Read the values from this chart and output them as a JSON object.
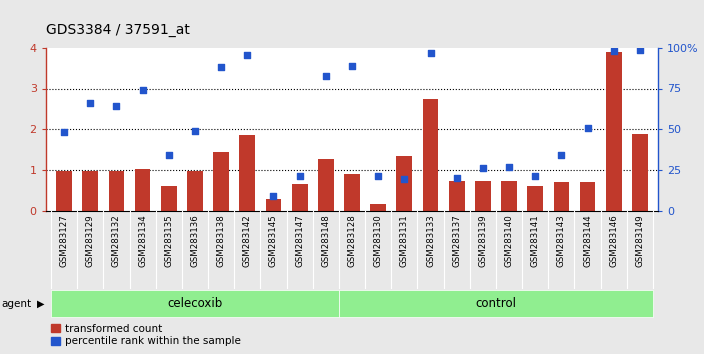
{
  "title": "GDS3384 / 37591_at",
  "categories": [
    "GSM283127",
    "GSM283129",
    "GSM283132",
    "GSM283134",
    "GSM283135",
    "GSM283136",
    "GSM283138",
    "GSM283142",
    "GSM283145",
    "GSM283147",
    "GSM283148",
    "GSM283128",
    "GSM283130",
    "GSM283131",
    "GSM283133",
    "GSM283137",
    "GSM283139",
    "GSM283140",
    "GSM283141",
    "GSM283143",
    "GSM283144",
    "GSM283146",
    "GSM283149"
  ],
  "red_values": [
    0.97,
    0.97,
    0.97,
    1.02,
    0.6,
    0.97,
    1.43,
    1.87,
    0.28,
    0.65,
    1.28,
    0.9,
    0.17,
    1.35,
    2.75,
    0.73,
    0.73,
    0.73,
    0.6,
    0.7,
    0.7,
    3.9,
    1.88
  ],
  "blue_values": [
    1.93,
    2.65,
    2.58,
    2.97,
    1.37,
    1.95,
    3.52,
    3.82,
    0.37,
    0.85,
    3.3,
    3.55,
    0.85,
    0.77,
    3.88,
    0.8,
    1.05,
    1.08,
    0.85,
    1.37,
    2.02,
    3.93,
    3.95
  ],
  "celecoxib_count": 11,
  "control_count": 12,
  "bar_color": "#c0392b",
  "dot_color": "#2255cc",
  "celecoxib_label": "celecoxib",
  "control_label": "control",
  "agent_label": "agent",
  "legend_bar": "transformed count",
  "legend_dot": "percentile rank within the sample",
  "ylim_left": [
    0,
    4
  ],
  "ylim_right": [
    0,
    100
  ],
  "yticks_left": [
    0,
    1,
    2,
    3,
    4
  ],
  "yticks_right": [
    0,
    25,
    50,
    75,
    100
  ],
  "green_bg": "#90ee90",
  "bar_color_hex": "#c0392b",
  "dot_color_hex": "#1a44bb",
  "fig_bg": "#e8e8e8"
}
